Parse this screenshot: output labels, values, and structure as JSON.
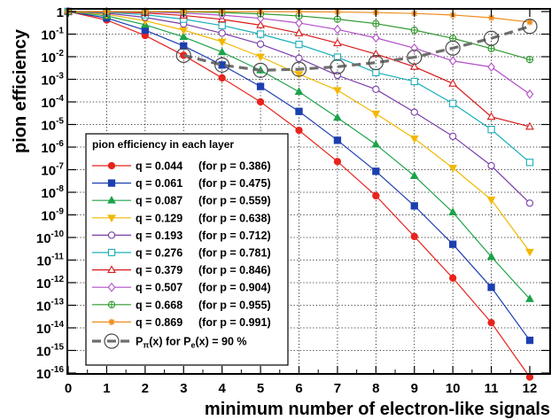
{
  "chart_data": {
    "type": "line",
    "ylog": true,
    "xlim": [
      0,
      12
    ],
    "ylim": [
      1e-16,
      1
    ],
    "grid": true,
    "xlabel": "minimum number of electron-like signals",
    "ylabel": "pion efficiency",
    "x_ticks": [
      "0",
      "1",
      "2",
      "3",
      "4",
      "5",
      "6",
      "7",
      "8",
      "9",
      "10",
      "11",
      "12"
    ],
    "y_ticks": [
      {
        "base": "1",
        "exp": ""
      },
      {
        "base": "10",
        "exp": "-1"
      },
      {
        "base": "10",
        "exp": "-2"
      },
      {
        "base": "10",
        "exp": "-3"
      },
      {
        "base": "10",
        "exp": "-4"
      },
      {
        "base": "10",
        "exp": "-5"
      },
      {
        "base": "10",
        "exp": "-6"
      },
      {
        "base": "10",
        "exp": "-7"
      },
      {
        "base": "10",
        "exp": "-8"
      },
      {
        "base": "10",
        "exp": "-9"
      },
      {
        "base": "10",
        "exp": "-10"
      },
      {
        "base": "10",
        "exp": "-11"
      },
      {
        "base": "10",
        "exp": "-12"
      },
      {
        "base": "10",
        "exp": "-13"
      },
      {
        "base": "10",
        "exp": "-14"
      },
      {
        "base": "10",
        "exp": "-15"
      },
      {
        "base": "10",
        "exp": "-16"
      }
    ],
    "x": [
      0,
      1,
      2,
      3,
      4,
      5,
      6,
      7,
      8,
      9,
      10,
      11,
      12
    ],
    "legend_title": "pion efficiency in each layer",
    "legend_position": "lower-left",
    "series": [
      {
        "q": "q = 0.044",
        "p": "(for p = 0.386)",
        "color": "#e8231d",
        "marker": "circle",
        "filled": true,
        "values": [
          1,
          0.42,
          0.087,
          0.0115,
          0.00115,
          0.0001,
          5.5e-06,
          2.3e-07,
          7e-09,
          1.1e-10,
          1.6e-12,
          1.7e-14,
          6.6e-17
        ]
      },
      {
        "q": "q = 0.061",
        "p": "(for p = 0.475)",
        "color": "#1c3fb0",
        "marker": "square",
        "filled": true,
        "values": [
          1,
          0.52,
          0.15,
          0.03,
          0.0043,
          0.00048,
          3.8e-05,
          2e-06,
          8.5e-08,
          2.5e-09,
          5e-11,
          6.2e-13,
          2.8e-15
        ]
      },
      {
        "q": "q = 0.087",
        "p": "(for p = 0.559)",
        "color": "#1ca34a",
        "marker": "triangle",
        "filled": true,
        "values": [
          1,
          0.64,
          0.26,
          0.075,
          0.016,
          0.0025,
          0.00028,
          2e-05,
          1.3e-06,
          5.3e-08,
          1.3e-09,
          1.4e-11,
          1.9e-13
        ]
      },
      {
        "q": "q = 0.129",
        "p": "(for p = 0.638)",
        "color": "#f2b800",
        "marker": "triangle-down",
        "filled": true,
        "values": [
          1,
          0.75,
          0.39,
          0.15,
          0.046,
          0.01,
          0.0017,
          0.00033,
          3e-05,
          2.4e-06,
          1.2e-07,
          4.7e-09,
          2.3e-11
        ]
      },
      {
        "q": "q = 0.193",
        "p": "(for p = 0.712)",
        "color": "#7a3ea8",
        "marker": "circle",
        "filled": false,
        "values": [
          1,
          0.84,
          0.55,
          0.28,
          0.11,
          0.036,
          0.0085,
          0.0015,
          0.00036,
          3.5e-05,
          3e-06,
          1.5e-07,
          3.3e-09
        ]
      },
      {
        "q": "q = 0.276",
        "p": "(for p = 0.781)",
        "color": "#1ab0b8",
        "marker": "square",
        "filled": false,
        "values": [
          1,
          0.92,
          0.72,
          0.46,
          0.24,
          0.1,
          0.035,
          0.0095,
          0.002,
          0.0008,
          8.5e-05,
          6e-06,
          2.1e-07
        ]
      },
      {
        "q": "q = 0.379",
        "p": "(for p = 0.846)",
        "color": "#d81818",
        "marker": "triangle",
        "filled": false,
        "values": [
          1,
          0.97,
          0.86,
          0.67,
          0.45,
          0.25,
          0.11,
          0.04,
          0.013,
          0.0036,
          0.00065,
          2.2e-05,
          8e-06
        ]
      },
      {
        "q": "q = 0.507",
        "p": "(for p = 0.904)",
        "color": "#b24fc8",
        "marker": "diamond",
        "filled": false,
        "values": [
          1,
          0.99,
          0.95,
          0.85,
          0.69,
          0.5,
          0.31,
          0.16,
          0.068,
          0.024,
          0.0065,
          0.0035,
          0.00022
        ]
      },
      {
        "q": "q = 0.668",
        "p": "(for p = 0.955)",
        "color": "#2e9a2e",
        "marker": "circle-plus",
        "filled": false,
        "values": [
          1,
          1,
          0.99,
          0.96,
          0.9,
          0.79,
          0.64,
          0.46,
          0.29,
          0.15,
          0.065,
          0.023,
          0.0075
        ]
      },
      {
        "q": "q = 0.869",
        "p": "(for p = 0.991)",
        "color": "#f08c1c",
        "marker": "star",
        "filled": true,
        "values": [
          1,
          1,
          1,
          1,
          1,
          0.99,
          0.98,
          0.95,
          0.9,
          0.82,
          0.7,
          0.53,
          0.34
        ]
      }
    ],
    "envelope": {
      "label_parts": {
        "a": "P",
        "a_sub": "π",
        "b": "(x) for P",
        "b_sub": "e",
        "c": "(x) = 90 %"
      },
      "color": "#6e6e6e",
      "x": [
        3,
        4,
        5,
        6,
        7,
        8,
        9,
        10,
        11,
        12
      ],
      "values": [
        0.0115,
        0.0043,
        0.0025,
        0.0028,
        0.0036,
        0.0055,
        0.0095,
        0.024,
        0.065,
        0.22
      ]
    }
  }
}
